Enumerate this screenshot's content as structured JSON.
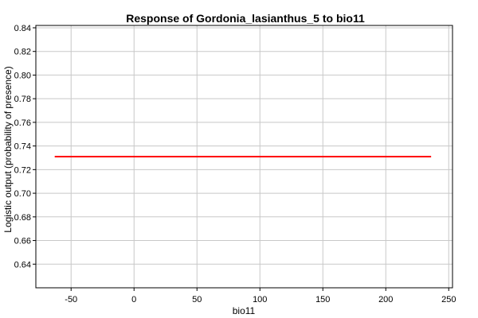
{
  "chart_data": {
    "type": "line",
    "title": "Response of Gordonia_lasianthus_5 to bio11",
    "xlabel": "bio11",
    "ylabel": "Logistic output (probability of presence)",
    "xlim": [
      -78,
      253
    ],
    "ylim": [
      0.62,
      0.842
    ],
    "x_ticks": [
      -50,
      0,
      50,
      100,
      150,
      200,
      250
    ],
    "y_ticks": [
      0.64,
      0.66,
      0.68,
      0.7,
      0.72,
      0.74,
      0.76,
      0.78,
      0.8,
      0.82,
      0.84
    ],
    "grid": true,
    "series": [
      {
        "color": "#ff0000",
        "x": [
          -63,
          236
        ],
        "y": [
          0.731,
          0.731
        ]
      }
    ]
  }
}
